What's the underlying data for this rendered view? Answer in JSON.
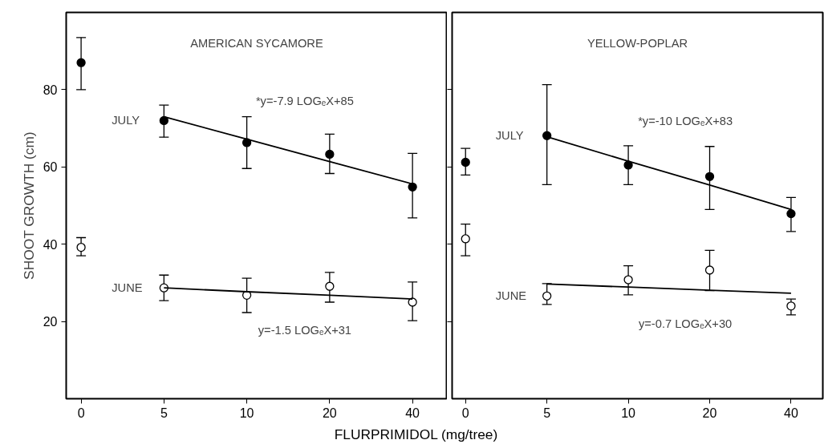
{
  "chart_data": [
    {
      "type": "scatter",
      "title": "AMERICAN SYCAMORE",
      "ylabel": "SHOOT GROWTH (cm)",
      "xlabel": "FLURPRIMIDOL (mg/tree)",
      "categories": [
        "0",
        "5",
        "10",
        "20",
        "40"
      ],
      "ylim": [
        0,
        100
      ],
      "yticks": [
        20,
        40,
        60,
        80
      ],
      "marker": "circle",
      "series": [
        {
          "name": "JULY",
          "color": "#000000",
          "values": [
            87,
            72,
            66.3,
            63.3,
            54.8
          ],
          "errors": [
            [
              80,
              93.5
            ],
            [
              67.7,
              76
            ],
            [
              59.6,
              73
            ],
            [
              58.3,
              68.5
            ],
            [
              46.8,
              63.5
            ]
          ]
        },
        {
          "name": "JUNE",
          "color": "#ffffff",
          "values": [
            39.2,
            28.7,
            26.8,
            29.1,
            25
          ],
          "errors": [
            [
              37,
              41.7
            ],
            [
              25.4,
              32
            ],
            [
              22.3,
              31.2
            ],
            [
              25,
              32.7
            ],
            [
              20.2,
              30.2
            ]
          ]
        },
        {
          "type": "line",
          "marker": "none",
          "color": "#000000",
          "values": [
            null,
            73,
            67.2,
            61.4,
            55.6
          ]
        },
        {
          "type": "line",
          "marker": "none",
          "color": "#000000",
          "values": [
            null,
            28.7,
            27.7,
            26.8,
            25.8
          ]
        }
      ],
      "annotations": [
        "*y=-7.9 LOGₑX+85",
        "y=-1.5 LOGₑX+31"
      ]
    },
    {
      "type": "scatter",
      "title": "YELLOW-POPLAR",
      "categories": [
        "0",
        "5",
        "10",
        "20",
        "40"
      ],
      "ylim": [
        0,
        100
      ],
      "yticks": [
        20,
        40,
        60,
        80
      ],
      "marker": "circle",
      "tick_labels": "x",
      "series": [
        {
          "name": "JULY",
          "color": "#000000",
          "values": [
            61.2,
            68.1,
            60.5,
            57.5,
            47.9
          ],
          "errors": [
            [
              57.9,
              64.8
            ],
            [
              55.4,
              81.3
            ],
            [
              55.4,
              65.5
            ],
            [
              49,
              65.3
            ],
            [
              43.3,
              52.1
            ]
          ]
        },
        {
          "name": "JUNE",
          "color": "#ffffff",
          "values": [
            41.4,
            26.6,
            30.8,
            33.3,
            24
          ],
          "errors": [
            [
              37,
              45.2
            ],
            [
              24.4,
              29.8
            ],
            [
              26.9,
              34.4
            ],
            [
              28,
              38.4
            ],
            [
              21.7,
              25.8
            ]
          ]
        },
        {
          "type": "line",
          "marker": "none",
          "color": "#000000",
          "values": [
            null,
            67.8,
            61.5,
            55.3,
            49
          ]
        },
        {
          "type": "line",
          "marker": "none",
          "color": "#000000",
          "values": [
            null,
            29.7,
            28.9,
            28.1,
            27.3
          ]
        }
      ],
      "annotations": [
        "*y=-10 LOGₑX+83",
        "y=-0.7 LOGₑX+30"
      ]
    }
  ]
}
